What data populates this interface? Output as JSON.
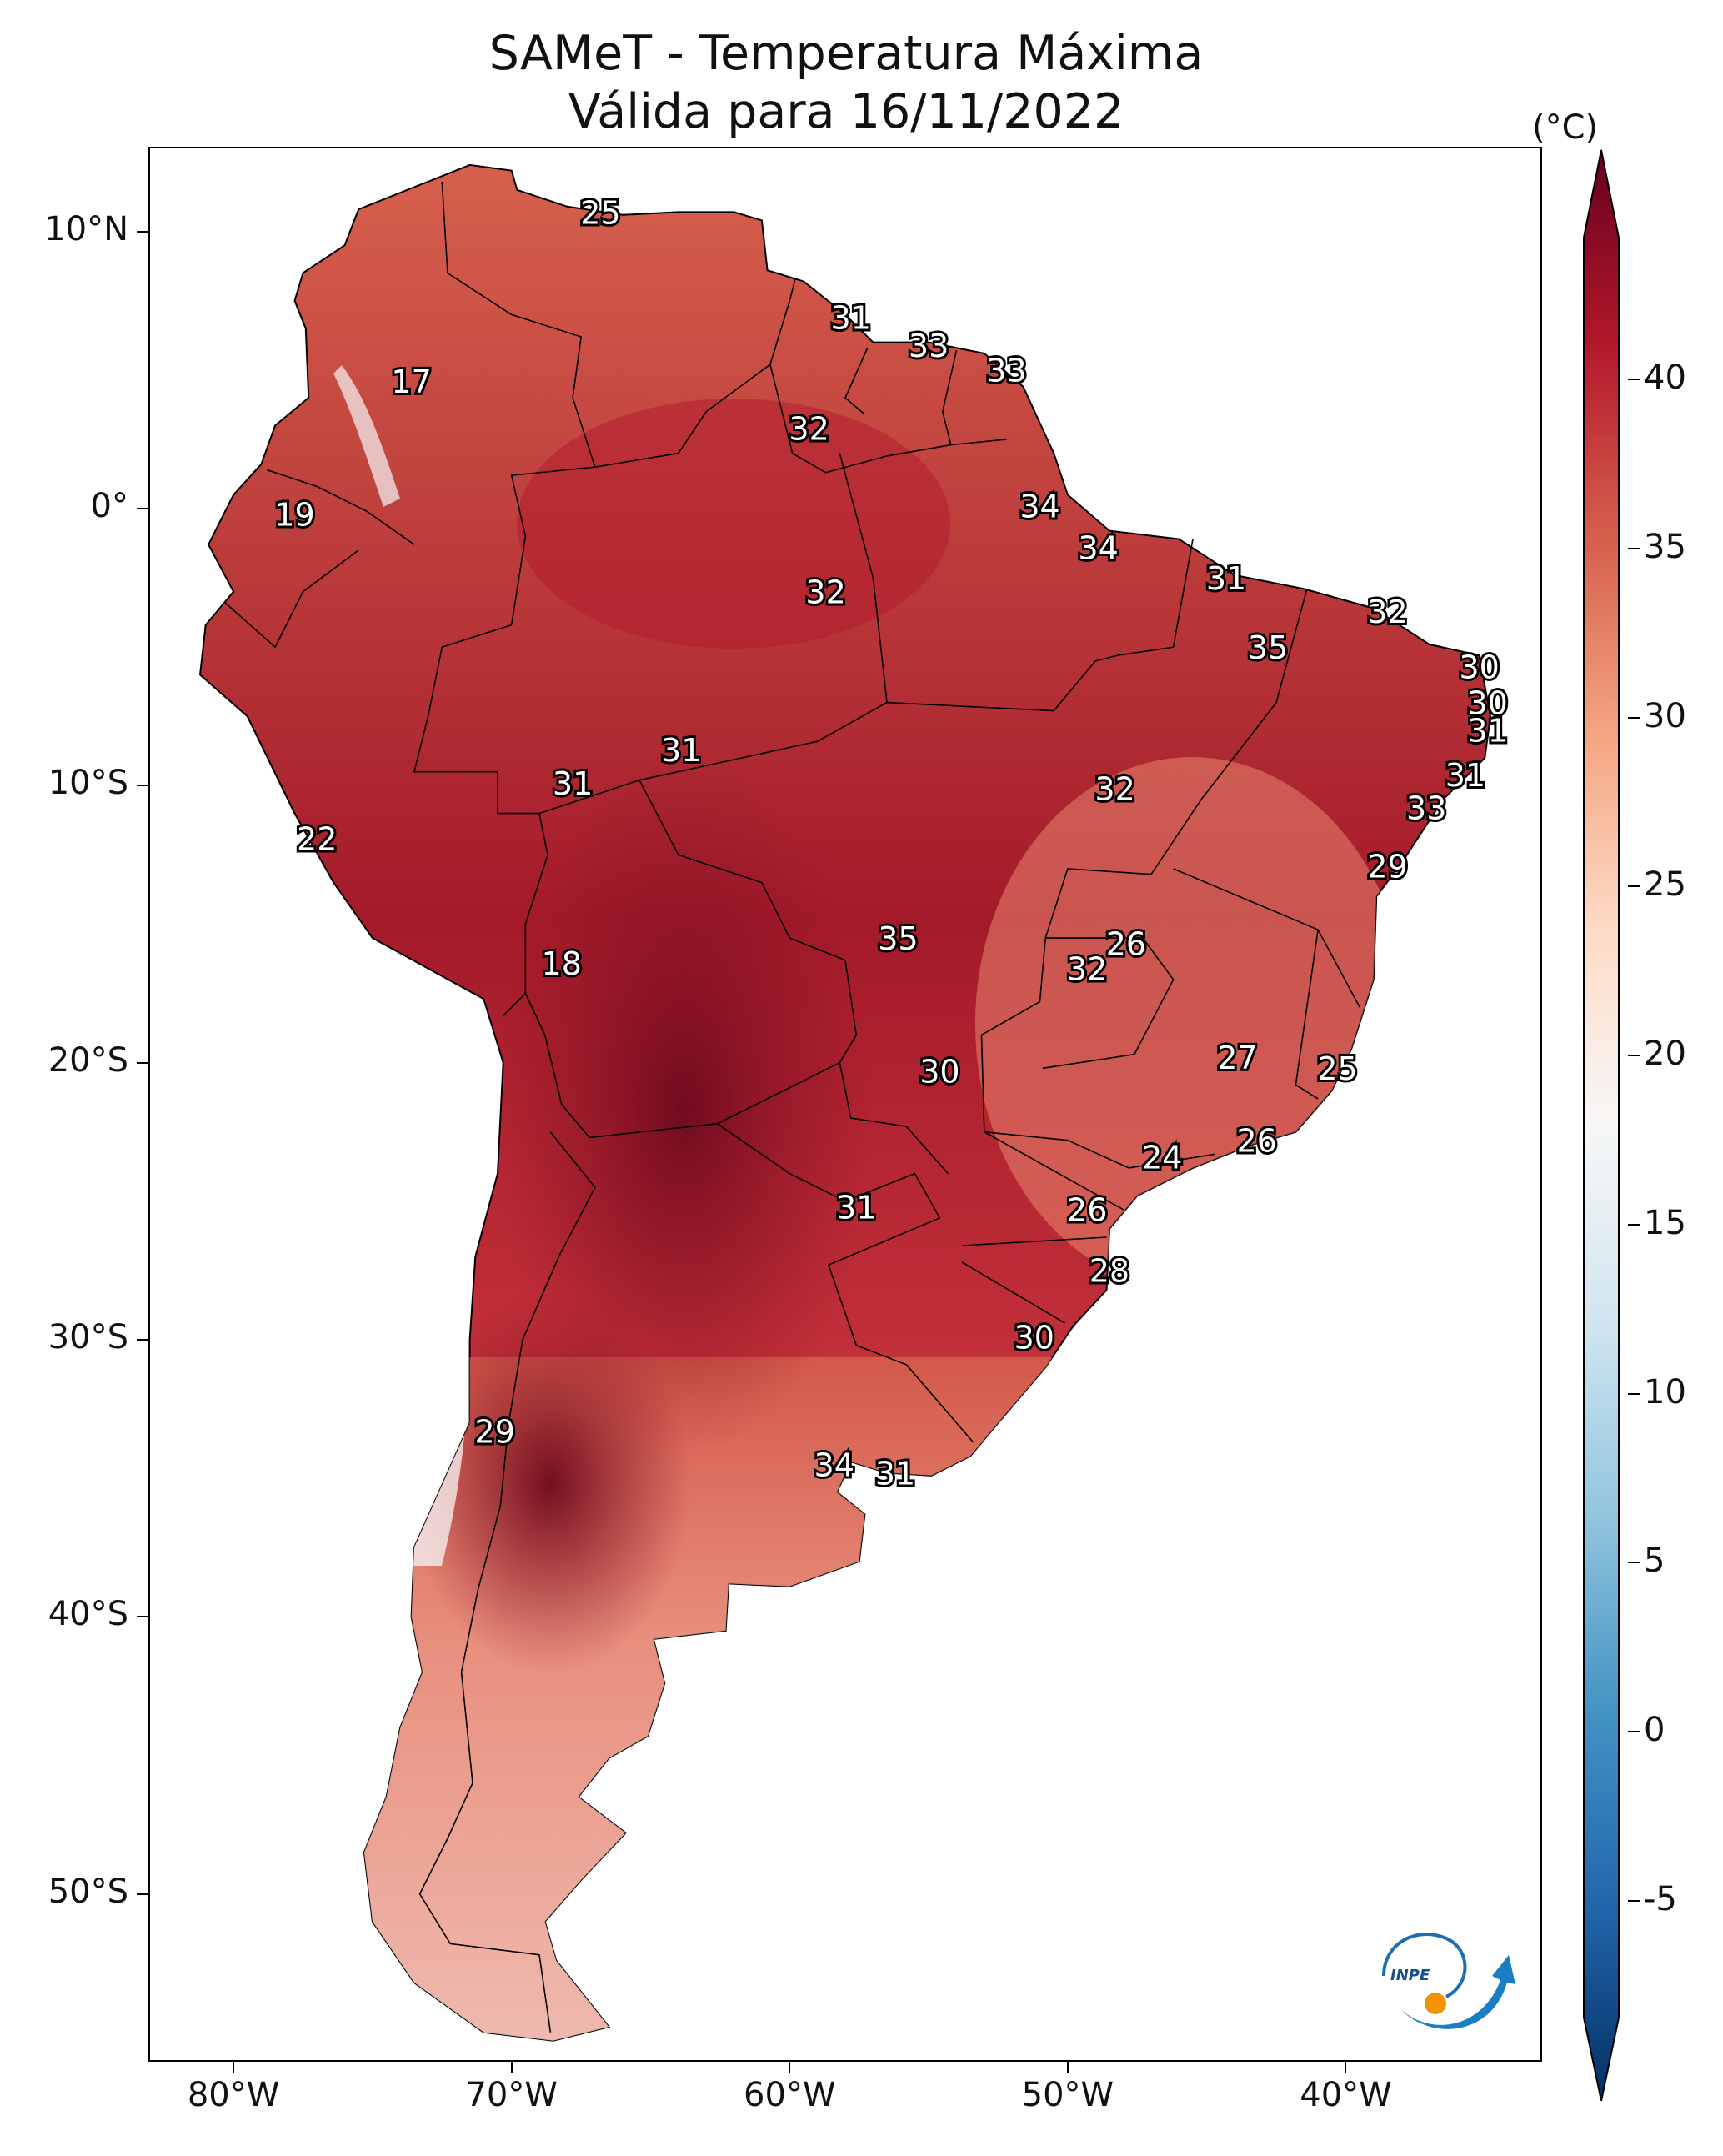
{
  "title_line1": "SAMeT - Temperatura Máxima",
  "title_line2": "Válida para 16/11/2022",
  "lat_axis": [
    {
      "text": "10°N",
      "lat": 10
    },
    {
      "text": "0°",
      "lat": 0
    },
    {
      "text": "10°S",
      "lat": -10
    },
    {
      "text": "20°S",
      "lat": -20
    },
    {
      "text": "30°S",
      "lat": -30
    },
    {
      "text": "40°S",
      "lat": -40
    },
    {
      "text": "50°S",
      "lat": -50
    }
  ],
  "lon_axis": [
    {
      "text": "80°W",
      "lon": -80
    },
    {
      "text": "70°W",
      "lon": -70
    },
    {
      "text": "60°W",
      "lon": -60
    },
    {
      "text": "50°W",
      "lon": -50
    },
    {
      "text": "40°W",
      "lon": -40
    }
  ],
  "map_extent": {
    "lon": [
      -83,
      -33
    ],
    "lat": [
      -56,
      13
    ]
  },
  "colorbar": {
    "unit": "(°C)",
    "range": [
      -5,
      40
    ],
    "ticks": [
      "40",
      "35",
      "30",
      "25",
      "20",
      "15",
      "10",
      "5",
      "0",
      "-5"
    ],
    "colors": [
      "#053061",
      "#2166ac",
      "#4393c3",
      "#92c5de",
      "#d1e5f0",
      "#f7f7f7",
      "#fddbc7",
      "#f4a582",
      "#d6604d",
      "#b2182b",
      "#67001f"
    ]
  },
  "station_values": [
    {
      "value": "25",
      "lon": -66.8,
      "lat": 10.6
    },
    {
      "value": "17",
      "lon": -73.6,
      "lat": 4.5
    },
    {
      "value": "31",
      "lon": -57.8,
      "lat": 6.8
    },
    {
      "value": "33",
      "lon": -55.0,
      "lat": 5.8
    },
    {
      "value": "33",
      "lon": -52.2,
      "lat": 4.9
    },
    {
      "value": "32",
      "lon": -59.3,
      "lat": 2.8
    },
    {
      "value": "19",
      "lon": -77.8,
      "lat": -0.3
    },
    {
      "value": "34",
      "lon": -51.0,
      "lat": 0.0
    },
    {
      "value": "34",
      "lon": -48.9,
      "lat": -1.5
    },
    {
      "value": "31",
      "lon": -44.3,
      "lat": -2.6
    },
    {
      "value": "32",
      "lon": -58.7,
      "lat": -3.1
    },
    {
      "value": "32",
      "lon": -38.5,
      "lat": -3.8
    },
    {
      "value": "35",
      "lon": -42.8,
      "lat": -5.1
    },
    {
      "value": "30",
      "lon": -35.2,
      "lat": -5.8
    },
    {
      "value": "30",
      "lon": -34.9,
      "lat": -7.1
    },
    {
      "value": "31",
      "lon": -34.9,
      "lat": -8.1
    },
    {
      "value": "31",
      "lon": -63.9,
      "lat": -8.8
    },
    {
      "value": "31",
      "lon": -67.8,
      "lat": -10.0
    },
    {
      "value": "31",
      "lon": -35.7,
      "lat": -9.7
    },
    {
      "value": "32",
      "lon": -48.3,
      "lat": -10.2
    },
    {
      "value": "33",
      "lon": -37.1,
      "lat": -10.9
    },
    {
      "value": "22",
      "lon": -77.0,
      "lat": -12.0
    },
    {
      "value": "29",
      "lon": -38.5,
      "lat": -13.0
    },
    {
      "value": "35",
      "lon": -56.1,
      "lat": -15.6
    },
    {
      "value": "26",
      "lon": -47.9,
      "lat": -15.8
    },
    {
      "value": "18",
      "lon": -68.2,
      "lat": -16.5
    },
    {
      "value": "32",
      "lon": -49.3,
      "lat": -16.7
    },
    {
      "value": "27",
      "lon": -43.9,
      "lat": -19.9
    },
    {
      "value": "30",
      "lon": -54.6,
      "lat": -20.4
    },
    {
      "value": "25",
      "lon": -40.3,
      "lat": -20.3
    },
    {
      "value": "26",
      "lon": -43.2,
      "lat": -22.9
    },
    {
      "value": "24",
      "lon": -46.6,
      "lat": -23.5
    },
    {
      "value": "31",
      "lon": -57.6,
      "lat": -25.3
    },
    {
      "value": "26",
      "lon": -49.3,
      "lat": -25.4
    },
    {
      "value": "28",
      "lon": -48.5,
      "lat": -27.6
    },
    {
      "value": "30",
      "lon": -51.2,
      "lat": -30.0
    },
    {
      "value": "29",
      "lon": -70.6,
      "lat": -33.4
    },
    {
      "value": "34",
      "lon": -58.4,
      "lat": -34.6
    },
    {
      "value": "31",
      "lon": -56.2,
      "lat": -34.9
    }
  ],
  "logo": {
    "text": "INPE"
  }
}
